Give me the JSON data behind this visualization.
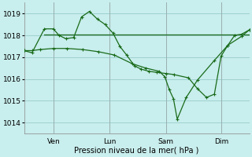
{
  "xlabel": "Pression niveau de la mer( hPa )",
  "bg_color": "#c8eeed",
  "grid_color": "#99cccc",
  "line_color": "#1a6b1a",
  "marker": "+",
  "ylim": [
    1013.5,
    1019.5
  ],
  "yticks": [
    1014,
    1015,
    1016,
    1017,
    1018,
    1019
  ],
  "xlim": [
    0.0,
    1.0
  ],
  "x_tick_positions": [
    0.13,
    0.38,
    0.63,
    0.875
  ],
  "x_tick_labels": [
    "Ven",
    "Lun",
    "Sam",
    "Dim"
  ],
  "x_vline_positions": [
    0.13,
    0.38,
    0.63,
    0.875
  ],
  "line1_x": [
    0.0,
    0.035,
    0.09,
    0.13,
    0.155,
    0.185,
    0.22,
    0.255,
    0.29,
    0.325,
    0.36,
    0.395,
    0.425,
    0.455,
    0.49,
    0.52,
    0.555,
    0.59,
    0.63,
    0.665,
    0.73,
    0.77,
    0.81,
    0.845,
    0.875,
    0.905,
    0.935,
    0.965,
    1.0
  ],
  "line1_y": [
    1017.3,
    1017.2,
    1018.3,
    1018.3,
    1018.0,
    1017.85,
    1017.9,
    1018.85,
    1019.1,
    1018.75,
    1018.5,
    1018.1,
    1017.5,
    1017.1,
    1016.6,
    1016.45,
    1016.35,
    1016.3,
    1016.25,
    1016.2,
    1016.05,
    1015.55,
    1015.15,
    1015.3,
    1017.05,
    1017.55,
    1018.0,
    1018.05,
    1018.25
  ],
  "line2_x": [
    0.0,
    0.035,
    0.07,
    0.13,
    0.19,
    0.26,
    0.33,
    0.4,
    0.48,
    0.54,
    0.6,
    0.625,
    0.645,
    0.663,
    0.68,
    0.72,
    0.77,
    0.845,
    0.905,
    0.965,
    1.0
  ],
  "line2_y": [
    1017.3,
    1017.3,
    1017.35,
    1017.4,
    1017.4,
    1017.35,
    1017.25,
    1017.1,
    1016.7,
    1016.5,
    1016.35,
    1016.1,
    1015.5,
    1015.1,
    1014.15,
    1015.15,
    1015.95,
    1016.85,
    1017.55,
    1017.95,
    1018.25
  ],
  "line3_x": [
    0.09,
    1.0
  ],
  "line3_y": [
    1018.05,
    1018.05
  ],
  "figsize": [
    3.2,
    2.0
  ],
  "dpi": 100
}
